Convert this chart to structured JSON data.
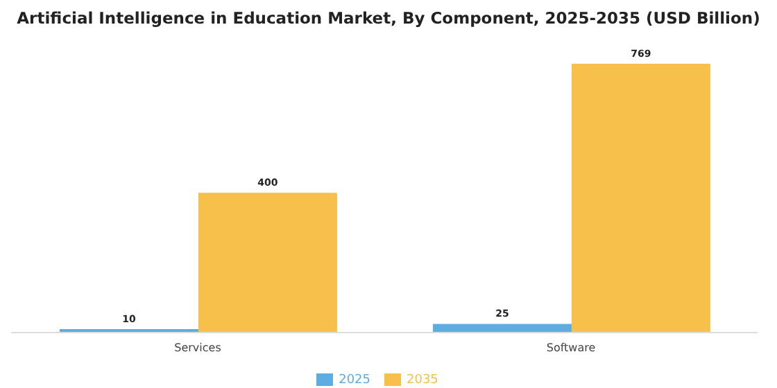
{
  "chart_data": {
    "type": "bar",
    "title": "Artificial Intelligence in Education Market, By Component, 2025-2035 (USD Billion)",
    "categories": [
      "Services",
      "Software"
    ],
    "series": [
      {
        "name": "2025",
        "color": "#5dade2",
        "values": [
          10,
          25
        ]
      },
      {
        "name": "2035",
        "color": "#f7c04a",
        "values": [
          400,
          769
        ]
      }
    ],
    "data_labels": true,
    "legend": "bottom",
    "grid": false
  }
}
